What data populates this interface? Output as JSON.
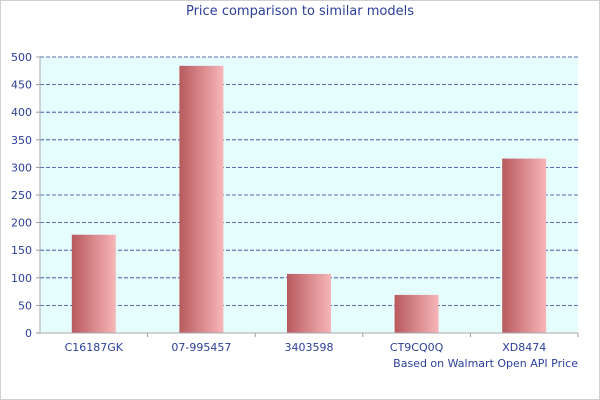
{
  "chart_data": {
    "type": "bar",
    "title": "Price comparison to similar models",
    "footer": "Based on Walmart Open API Price",
    "categories": [
      "C16187GK",
      "07-995457",
      "3403598",
      "CT9CQ0Q",
      "XD8474"
    ],
    "values": [
      178,
      484,
      107,
      69,
      316
    ],
    "xlabel": "",
    "ylabel": "",
    "ylim": [
      0,
      500
    ],
    "yticks": [
      0,
      50,
      100,
      150,
      200,
      250,
      300,
      350,
      400,
      450,
      500
    ],
    "grid": true,
    "legend": "none"
  },
  "colors": {
    "plot_bg": "#e6fdfe",
    "grid": "#2a3f9a",
    "bar_dark": "#b85a5e",
    "bar_light": "#f7b6b8",
    "text": "#2a3f9a"
  }
}
